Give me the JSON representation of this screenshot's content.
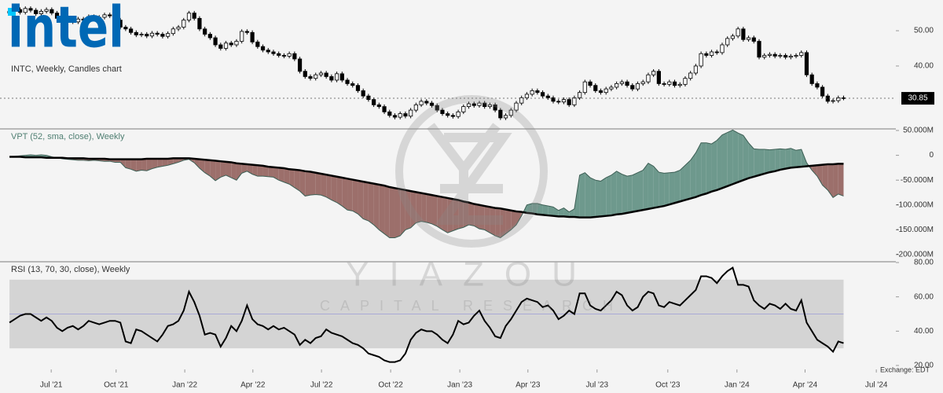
{
  "logo": "intel",
  "watermark": {
    "name": "YIAZOU",
    "tagline": "CAPITAL RESEARCH"
  },
  "exchange": "Exchange: EDT",
  "chart_data": [
    {
      "type": "candlestick",
      "title": "INTC, Weekly, Candles chart",
      "up_color": "#ffffff",
      "down_color": "#000000",
      "line_color": "#000000",
      "xlim": [
        -1.8,
        167.9
      ],
      "ylim": [
        22.4,
        58.7
      ],
      "yticks": [
        {
          "value": 40,
          "label": "40.00"
        },
        {
          "value": 50,
          "label": "50.00"
        }
      ],
      "open": [
        55.0,
        55.5,
        56.0,
        55.2,
        56.3,
        55.8,
        54.8,
        55.5,
        56.0,
        55.0,
        53.5,
        53.8,
        53.0,
        52.5,
        53.3,
        53.0,
        54.0,
        53.5,
        53.8,
        54.5,
        54.2,
        53.0,
        51.0,
        50.5,
        49.5,
        48.8,
        49.0,
        48.5,
        49.3,
        49.0,
        48.4,
        49.2,
        50.5,
        51.0,
        53.0,
        55.0,
        53.5,
        50.5,
        49.0,
        48.0,
        46.0,
        45.0,
        46.5,
        46.0,
        47.0,
        49.8,
        49.5,
        46.8,
        45.5,
        44.5,
        44.0,
        43.5,
        43.0,
        42.8,
        43.5,
        42.0,
        38.5,
        37.0,
        36.5,
        37.5,
        38.0,
        37.0,
        36.0,
        37.8,
        36.0,
        35.0,
        34.5,
        33.0,
        31.5,
        30.5,
        29.0,
        28.5,
        27.0,
        26.0,
        25.5,
        26.5,
        25.8,
        27.5,
        29.0,
        30.0,
        29.5,
        28.8,
        27.5,
        26.5,
        26.0,
        25.7,
        27.0,
        28.5,
        29.3,
        28.8,
        29.5,
        28.5,
        29.0,
        27.5,
        25.3,
        26.0,
        27.5,
        29.5,
        31.0,
        32.0,
        33.0,
        32.5,
        31.5,
        31.0,
        30.0,
        29.8,
        30.5,
        29.0,
        31.0,
        32.5,
        35.5,
        34.5,
        33.0,
        32.5,
        33.5,
        34.0,
        35.0,
        35.5,
        34.5,
        33.5,
        35.0,
        35.5,
        37.5,
        38.5,
        35.0,
        34.8,
        35.5,
        34.5,
        34.8,
        36.5,
        38.0,
        40.0,
        43.5,
        43.0,
        44.0,
        43.8,
        46.0,
        47.8,
        48.5,
        50.5,
        47.5,
        48.0,
        47.0,
        42.5,
        43.0,
        43.3,
        42.8,
        43.0,
        42.5,
        42.8,
        43.0,
        43.8,
        37.5,
        35.0,
        34.0,
        31.5,
        30.0,
        30.2,
        31.0
      ],
      "high": [
        56.1,
        56.6,
        56.6,
        56.9,
        56.9,
        56.4,
        56.1,
        56.6,
        56.6,
        55.6,
        54.4,
        54.4,
        53.6,
        53.9,
        53.9,
        54.6,
        54.6,
        54.4,
        55.1,
        55.1,
        54.8,
        53.6,
        51.6,
        51.1,
        50.1,
        49.6,
        49.6,
        49.9,
        49.9,
        49.6,
        49.8,
        51.1,
        51.6,
        53.6,
        55.6,
        55.6,
        54.1,
        51.1,
        49.6,
        48.6,
        46.6,
        47.1,
        47.1,
        47.6,
        50.4,
        50.4,
        50.1,
        47.4,
        46.1,
        45.1,
        44.6,
        44.1,
        43.6,
        44.1,
        44.1,
        42.6,
        39.1,
        37.6,
        38.1,
        38.6,
        38.6,
        37.6,
        38.4,
        38.4,
        36.6,
        35.6,
        35.1,
        33.6,
        32.1,
        31.1,
        29.6,
        29.1,
        27.6,
        26.6,
        27.1,
        27.1,
        28.1,
        29.6,
        30.6,
        30.6,
        30.1,
        29.4,
        28.1,
        27.1,
        26.6,
        27.6,
        29.1,
        29.9,
        29.9,
        30.1,
        30.1,
        29.6,
        29.6,
        28.1,
        26.6,
        28.1,
        30.1,
        31.6,
        32.6,
        33.6,
        33.6,
        33.1,
        32.1,
        31.6,
        30.6,
        31.1,
        31.1,
        31.6,
        33.1,
        36.1,
        36.1,
        35.1,
        33.6,
        34.1,
        34.6,
        35.6,
        36.1,
        36.1,
        35.1,
        35.6,
        36.1,
        38.1,
        39.1,
        39.1,
        35.6,
        36.1,
        36.1,
        35.4,
        37.1,
        38.6,
        40.6,
        44.1,
        44.1,
        44.6,
        44.6,
        46.6,
        48.4,
        49.1,
        51.1,
        51.1,
        48.6,
        48.6,
        47.6,
        43.6,
        43.9,
        43.9,
        43.6,
        43.6,
        43.4,
        43.6,
        44.4,
        44.4,
        38.1,
        35.6,
        34.6,
        32.1,
        30.8,
        31.6,
        31.6
      ],
      "low": [
        54.4,
        54.9,
        54.6,
        54.6,
        55.2,
        54.2,
        54.2,
        54.9,
        54.4,
        52.9,
        52.9,
        52.4,
        51.9,
        51.9,
        52.4,
        52.4,
        52.9,
        52.9,
        53.2,
        53.6,
        52.4,
        50.4,
        49.9,
        48.9,
        48.2,
        48.2,
        47.9,
        47.9,
        48.4,
        47.8,
        47.8,
        48.6,
        49.9,
        50.4,
        52.4,
        52.9,
        49.9,
        48.4,
        47.4,
        45.4,
        44.4,
        44.4,
        45.4,
        45.4,
        46.4,
        48.9,
        46.2,
        44.9,
        43.9,
        43.4,
        42.9,
        42.4,
        42.2,
        42.2,
        41.4,
        37.9,
        36.4,
        35.9,
        35.9,
        36.9,
        36.4,
        35.4,
        35.4,
        35.4,
        34.4,
        33.9,
        32.4,
        30.9,
        29.9,
        28.4,
        27.9,
        26.4,
        25.4,
        24.9,
        24.9,
        25.2,
        25.2,
        26.9,
        28.4,
        28.9,
        28.2,
        26.9,
        25.9,
        25.4,
        25.1,
        25.1,
        26.4,
        27.9,
        28.2,
        28.2,
        27.9,
        27.9,
        26.9,
        24.7,
        24.7,
        25.4,
        26.9,
        28.9,
        30.4,
        31.4,
        31.9,
        30.9,
        30.4,
        29.4,
        29.2,
        29.2,
        28.4,
        28.4,
        30.4,
        31.9,
        33.9,
        32.4,
        31.9,
        31.9,
        32.9,
        33.4,
        34.4,
        33.9,
        32.9,
        32.9,
        34.4,
        34.9,
        36.9,
        34.4,
        34.2,
        34.2,
        33.9,
        33.9,
        34.2,
        35.9,
        37.4,
        39.4,
        42.4,
        42.4,
        43.2,
        43.2,
        45.4,
        47.2,
        47.9,
        46.9,
        46.9,
        46.4,
        41.9,
        41.9,
        42.4,
        42.2,
        42.2,
        41.9,
        41.9,
        42.2,
        42.4,
        36.9,
        34.4,
        33.4,
        30.9,
        29.4,
        29.4,
        29.6,
        30.3
      ],
      "close": [
        55.5,
        56.0,
        55.2,
        56.3,
        55.8,
        54.8,
        55.5,
        56.0,
        55.0,
        53.5,
        53.8,
        53.0,
        52.5,
        53.3,
        53.0,
        54.0,
        53.5,
        53.8,
        54.5,
        54.2,
        53.0,
        51.0,
        50.5,
        49.5,
        48.8,
        49.0,
        48.5,
        49.3,
        49.0,
        48.4,
        49.2,
        50.5,
        51.0,
        53.0,
        55.0,
        53.5,
        50.5,
        49.0,
        48.0,
        46.0,
        45.0,
        46.5,
        46.0,
        47.0,
        49.8,
        49.5,
        46.8,
        45.5,
        44.5,
        44.0,
        43.5,
        43.0,
        42.8,
        43.5,
        42.0,
        38.5,
        37.0,
        36.5,
        37.5,
        38.0,
        37.0,
        36.0,
        37.8,
        36.0,
        35.0,
        34.5,
        33.0,
        31.5,
        30.5,
        29.0,
        28.5,
        27.0,
        26.0,
        25.5,
        26.5,
        25.8,
        27.5,
        29.0,
        30.0,
        29.5,
        28.8,
        27.5,
        26.5,
        26.0,
        25.7,
        27.0,
        28.5,
        29.3,
        28.8,
        29.5,
        28.5,
        29.0,
        27.5,
        25.3,
        26.0,
        27.5,
        29.5,
        31.0,
        32.0,
        33.0,
        32.5,
        31.5,
        31.0,
        30.0,
        29.8,
        30.5,
        29.0,
        31.0,
        32.5,
        35.5,
        34.5,
        33.0,
        32.5,
        33.5,
        34.0,
        35.0,
        35.5,
        34.5,
        33.5,
        35.0,
        35.5,
        37.5,
        38.5,
        35.0,
        34.8,
        35.5,
        34.5,
        34.8,
        36.5,
        38.0,
        40.0,
        43.5,
        43.0,
        44.0,
        43.8,
        46.0,
        47.8,
        48.5,
        50.5,
        47.5,
        48.0,
        47.0,
        42.5,
        43.0,
        43.3,
        42.8,
        43.0,
        42.5,
        42.8,
        43.0,
        43.8,
        37.5,
        35.0,
        34.0,
        31.5,
        30.0,
        30.2,
        31.0,
        30.85
      ]
    },
    {
      "type": "vpt",
      "title": "VPT (52, sma, close), Weekly",
      "color": "#3d5f55",
      "sma_color": "#000000",
      "above_color": "#6e998d",
      "below_color": "#9c6f6b",
      "xlim": [
        -1.8,
        167.9
      ],
      "ylim": [
        -212.7,
        51.6
      ],
      "yticks": [
        {
          "value": 50,
          "label": "50.000M"
        },
        0,
        {
          "value": -50,
          "label": "-50.000M"
        },
        {
          "value": -100,
          "label": "-100.000M"
        },
        {
          "value": -150,
          "label": "-150.000M"
        },
        {
          "value": -200,
          "label": "-200.000M"
        }
      ],
      "values": [
        -3,
        -2,
        -1,
        0,
        1,
        0,
        1,
        0,
        -3,
        -5,
        -7,
        -8,
        -9,
        -10,
        -10,
        -11,
        -10,
        -11,
        -12,
        -12,
        -14,
        -14,
        -25,
        -28,
        -32,
        -30,
        -31,
        -27,
        -24,
        -22,
        -20,
        -17,
        -14,
        -10,
        -8,
        -15,
        -26,
        -35,
        -42,
        -51,
        -44,
        -40,
        -45,
        -50,
        -36,
        -32,
        -38,
        -42,
        -42,
        -43,
        -44,
        -50,
        -54,
        -58,
        -65,
        -72,
        -82,
        -80,
        -79,
        -80,
        -84,
        -90,
        -95,
        -102,
        -110,
        -112,
        -118,
        -128,
        -132,
        -140,
        -150,
        -158,
        -166,
        -166,
        -162,
        -150,
        -146,
        -136,
        -133,
        -135,
        -138,
        -143,
        -150,
        -156,
        -152,
        -148,
        -145,
        -140,
        -142,
        -148,
        -150,
        -156,
        -162,
        -166,
        -158,
        -150,
        -140,
        -122,
        -100,
        -97,
        -97,
        -100,
        -102,
        -104,
        -111,
        -106,
        -114,
        -108,
        -40,
        -35,
        -45,
        -50,
        -52,
        -45,
        -40,
        -32,
        -38,
        -42,
        -40,
        -35,
        -30,
        -16,
        -22,
        -34,
        -36,
        -35,
        -34,
        -30,
        -20,
        -10,
        5,
        25,
        25,
        23,
        30,
        41,
        46,
        51,
        45,
        40,
        25,
        13,
        12,
        12,
        11,
        12,
        13,
        12,
        14,
        10,
        12,
        -15,
        -30,
        -42,
        -60,
        -70,
        -85,
        -78,
        -82
      ],
      "sma_values": [
        -3,
        -3,
        -3,
        -4,
        -4,
        -4,
        -4,
        -5,
        -5,
        -5,
        -5,
        -6,
        -6,
        -6,
        -6,
        -7,
        -7,
        -7,
        -7,
        -8,
        -8,
        -8,
        -8,
        -8,
        -8,
        -8,
        -7,
        -7,
        -7,
        -7,
        -7,
        -6,
        -6,
        -6,
        -6,
        -7,
        -8,
        -9,
        -10,
        -11,
        -12,
        -13,
        -14,
        -16,
        -17,
        -18,
        -19,
        -20,
        -21,
        -23,
        -24,
        -25,
        -26,
        -28,
        -29,
        -30,
        -32,
        -33,
        -35,
        -37,
        -39,
        -41,
        -43,
        -45,
        -47,
        -49,
        -51,
        -53,
        -55,
        -57,
        -59,
        -61,
        -64,
        -66,
        -68,
        -70,
        -72,
        -74,
        -76,
        -78,
        -80,
        -82,
        -84,
        -86,
        -88,
        -90,
        -93,
        -95,
        -98,
        -100,
        -102,
        -104,
        -106,
        -107,
        -109,
        -111,
        -113,
        -114,
        -116,
        -117,
        -119,
        -120,
        -121,
        -122,
        -123,
        -123,
        -124,
        -124,
        -125,
        -125,
        -125,
        -124,
        -123,
        -122,
        -121,
        -119,
        -118,
        -116,
        -114,
        -112,
        -110,
        -108,
        -106,
        -104,
        -102,
        -99,
        -96,
        -93,
        -90,
        -87,
        -84,
        -80,
        -77,
        -73,
        -70,
        -66,
        -62,
        -58,
        -54,
        -50,
        -46,
        -43,
        -40,
        -37,
        -34,
        -32,
        -29,
        -27,
        -25,
        -24,
        -23,
        -22,
        -21,
        -20,
        -19,
        -18,
        -18,
        -17,
        -17
      ]
    },
    {
      "type": "rsi",
      "title": "RSI (13, 70, 30, close), Weekly",
      "color": "#000000",
      "band": [
        70,
        30
      ],
      "band_color": "#d4d4d4",
      "midline": 50,
      "midline_color": "#a9a9d6",
      "xlim": [
        -1.8,
        167.9
      ],
      "ylim": [
        17.7,
        80
      ],
      "yticks": [
        {
          "value": 20,
          "label": "20.00"
        },
        {
          "value": 40,
          "label": "40.00"
        },
        {
          "value": 60,
          "label": "60.00"
        },
        {
          "value": 80,
          "label": "80.00"
        }
      ],
      "xticks": [
        {
          "value": 7.9,
          "label": "Jul '21"
        },
        {
          "value": 20.2,
          "label": "Oct '21"
        },
        {
          "value": 33.2,
          "label": "Jan '22"
        },
        {
          "value": 46.1,
          "label": "Apr '22"
        },
        {
          "value": 59.1,
          "label": "Jul '22"
        },
        {
          "value": 72.2,
          "label": "Oct '22"
        },
        {
          "value": 85.3,
          "label": "Jan '23"
        },
        {
          "value": 98.2,
          "label": "Apr '23"
        },
        {
          "value": 111.3,
          "label": "Jul '23"
        },
        {
          "value": 124.7,
          "label": "Oct '23"
        },
        {
          "value": 137.8,
          "label": "Jan '24"
        },
        {
          "value": 150.7,
          "label": "Apr '24"
        },
        {
          "value": 164.2,
          "label": "Jul '24"
        }
      ],
      "values": [
        45,
        47,
        49,
        50,
        50,
        48,
        46,
        48,
        46,
        42,
        40,
        42,
        43,
        41,
        43,
        46,
        45,
        44,
        45,
        46,
        46,
        45,
        34,
        33,
        41,
        40,
        38,
        36,
        34,
        38,
        43,
        44,
        46,
        52,
        63,
        57,
        49,
        38,
        39,
        38,
        31,
        36,
        43,
        40,
        46,
        55,
        47,
        44,
        43,
        41,
        43,
        41,
        42,
        40,
        38,
        32,
        35,
        33,
        36,
        37,
        41,
        39,
        38,
        37,
        35,
        33,
        32,
        30,
        27,
        26,
        25,
        23,
        22,
        22,
        23,
        27,
        35,
        39,
        41,
        40,
        40,
        38,
        35,
        33,
        38,
        46,
        44,
        45,
        49,
        52,
        46,
        42,
        37,
        36,
        43,
        47,
        52,
        57,
        59,
        58,
        57,
        54,
        55,
        52,
        47,
        49,
        52,
        50,
        62,
        62,
        55,
        53,
        52,
        55,
        58,
        63,
        61,
        55,
        52,
        54,
        60,
        63,
        62,
        55,
        54,
        57,
        56,
        55,
        58,
        61,
        64,
        72,
        72,
        71,
        68,
        72,
        75,
        77,
        67,
        67,
        66,
        58,
        55,
        53,
        56,
        55,
        53,
        56,
        53,
        52,
        58,
        45,
        40,
        35,
        33,
        31,
        28,
        34,
        33
      ]
    }
  ]
}
